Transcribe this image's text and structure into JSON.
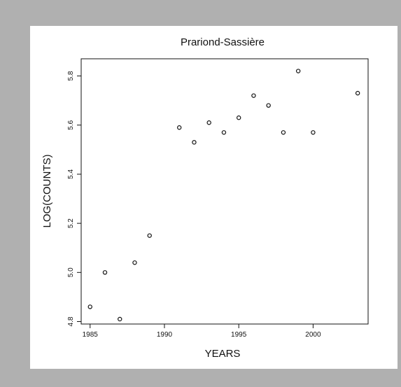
{
  "chart_data": {
    "type": "scatter",
    "title": "Prariond-Sassière",
    "xlabel": "YEARS",
    "ylabel": "LOG(COUNTS)",
    "xlim": [
      1984.4,
      2003.7
    ],
    "ylim": [
      4.79,
      5.87
    ],
    "xticks": [
      1985,
      1990,
      1995,
      2000
    ],
    "xtick_labels": [
      "1985",
      "1990",
      "1995",
      "2000"
    ],
    "yticks": [
      4.8,
      5.0,
      5.2,
      5.4,
      5.6,
      5.8
    ],
    "ytick_labels": [
      "4.8",
      "5.0",
      "5.2",
      "5.4",
      "5.6",
      "5.8"
    ],
    "grid": false,
    "legend": "none",
    "x": [
      1985,
      1986,
      1987,
      1988,
      1989,
      1991,
      1992,
      1993,
      1994,
      1995,
      1996,
      1997,
      1998,
      1999,
      2000,
      2003
    ],
    "y": [
      4.86,
      5.0,
      4.81,
      5.04,
      5.15,
      5.59,
      5.53,
      5.61,
      5.57,
      5.63,
      5.72,
      5.68,
      5.57,
      5.82,
      5.57,
      5.73
    ]
  }
}
